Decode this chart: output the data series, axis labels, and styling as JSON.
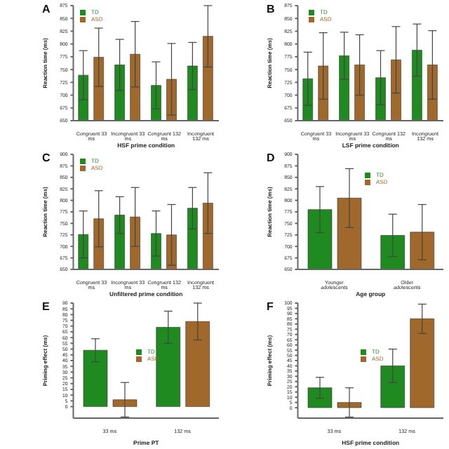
{
  "chart_data": [
    {
      "type": "bar",
      "title": "A",
      "xlabel": "HSF prime condition",
      "ylabel": "Reaction time (ms)",
      "categories": [
        "Congruent 33 ms",
        "Incongruent 33 ms",
        "Congruent 132 ms",
        "Incongruent 132 ms"
      ],
      "series": [
        {
          "name": "TD",
          "color": "#1f8a1f",
          "values": [
            739,
            759,
            719,
            757
          ],
          "errors": [
            48,
            50,
            46,
            46
          ]
        },
        {
          "name": "ASD",
          "color": "#a0692b",
          "values": [
            774,
            780,
            731,
            815
          ],
          "errors": [
            57,
            64,
            70,
            60
          ]
        }
      ],
      "ylim": [
        650,
        875
      ],
      "yticks": [
        650,
        675,
        700,
        725,
        750,
        775,
        800,
        825,
        850,
        875
      ],
      "legend": "top left"
    },
    {
      "type": "bar",
      "title": "B",
      "xlabel": "LSF prime condition",
      "ylabel": "Reaction time (ms)",
      "categories": [
        "Congruent 33 ms",
        "Incongruent 33 ms",
        "Congruent 132 ms",
        "Incongruent 132 ms"
      ],
      "series": [
        {
          "name": "TD",
          "color": "#1f8a1f",
          "values": [
            732,
            777,
            734,
            788
          ],
          "errors": [
            52,
            46,
            53,
            51
          ]
        },
        {
          "name": "ASD",
          "color": "#a0692b",
          "values": [
            757,
            759,
            769,
            759
          ],
          "errors": [
            65,
            59,
            65,
            67
          ]
        }
      ],
      "ylim": [
        650,
        875
      ],
      "yticks": [
        650,
        675,
        700,
        725,
        750,
        775,
        800,
        825,
        850,
        875
      ],
      "legend": "top"
    },
    {
      "type": "bar",
      "title": "C",
      "xlabel": "Unfiltered prime condition",
      "ylabel": "Reaction time (ms)",
      "categories": [
        "Congruent 33 ms",
        "Incongruent 33 ms",
        "Congruent 132 ms",
        "Incongruent 132 ms"
      ],
      "series": [
        {
          "name": "TD",
          "color": "#1f8a1f",
          "values": [
            726,
            768,
            728,
            783
          ],
          "errors": [
            51,
            40,
            49,
            45
          ]
        },
        {
          "name": "ASD",
          "color": "#a0692b",
          "values": [
            760,
            764,
            725,
            794
          ],
          "errors": [
            61,
            64,
            66,
            66
          ]
        }
      ],
      "ylim": [
        650,
        900
      ],
      "yticks": [
        650,
        675,
        700,
        725,
        750,
        775,
        800,
        825,
        850,
        875,
        900
      ],
      "legend": "top left"
    },
    {
      "type": "bar",
      "title": "D",
      "xlabel": "Age group",
      "ylabel": "Reaction time (ms)",
      "categories": [
        "Younger adolescents",
        "Older adolescents"
      ],
      "series": [
        {
          "name": "TD",
          "color": "#1f8a1f",
          "values": [
            780,
            724
          ],
          "errors": [
            50,
            46
          ]
        },
        {
          "name": "ASD",
          "color": "#a0692b",
          "values": [
            805,
            731
          ],
          "errors": [
            64,
            60
          ]
        }
      ],
      "ylim": [
        650,
        900
      ],
      "yticks": [
        650,
        675,
        700,
        725,
        750,
        775,
        800,
        825,
        850,
        875,
        900
      ],
      "legend": "top right"
    },
    {
      "type": "bar",
      "title": "E",
      "xlabel": "Prime PT",
      "ylabel": "Priming effect (ms)",
      "categories": [
        "33 ms",
        "132 ms"
      ],
      "series": [
        {
          "name": "TD",
          "color": "#1f8a1f",
          "values": [
            49,
            69
          ],
          "errors": [
            10,
            14
          ]
        },
        {
          "name": "ASD",
          "color": "#a0692b",
          "values": [
            6,
            74
          ],
          "errors": [
            15,
            16
          ]
        }
      ],
      "ylim": [
        -10,
        90
      ],
      "yticks": [
        0,
        5,
        10,
        15,
        20,
        25,
        30,
        35,
        40,
        45,
        50,
        55,
        60,
        65,
        70,
        75,
        80,
        85,
        90
      ],
      "legend": "center"
    },
    {
      "type": "bar",
      "title": "F",
      "xlabel": "HSF prime condition",
      "ylabel": "Priming effect (ms)",
      "categories": [
        "33 ms",
        "132 ms"
      ],
      "series": [
        {
          "name": "TD",
          "color": "#1f8a1f",
          "values": [
            19,
            40
          ],
          "errors": [
            10,
            16
          ]
        },
        {
          "name": "ASD",
          "color": "#a0692b",
          "values": [
            5,
            85
          ],
          "errors": [
            14,
            14
          ]
        }
      ],
      "ylim": [
        -10,
        100
      ],
      "yticks": [
        0,
        5,
        10,
        15,
        20,
        25,
        30,
        35,
        40,
        45,
        50,
        55,
        60,
        65,
        70,
        75,
        80,
        85,
        90,
        95,
        100
      ],
      "legend": "center"
    }
  ]
}
